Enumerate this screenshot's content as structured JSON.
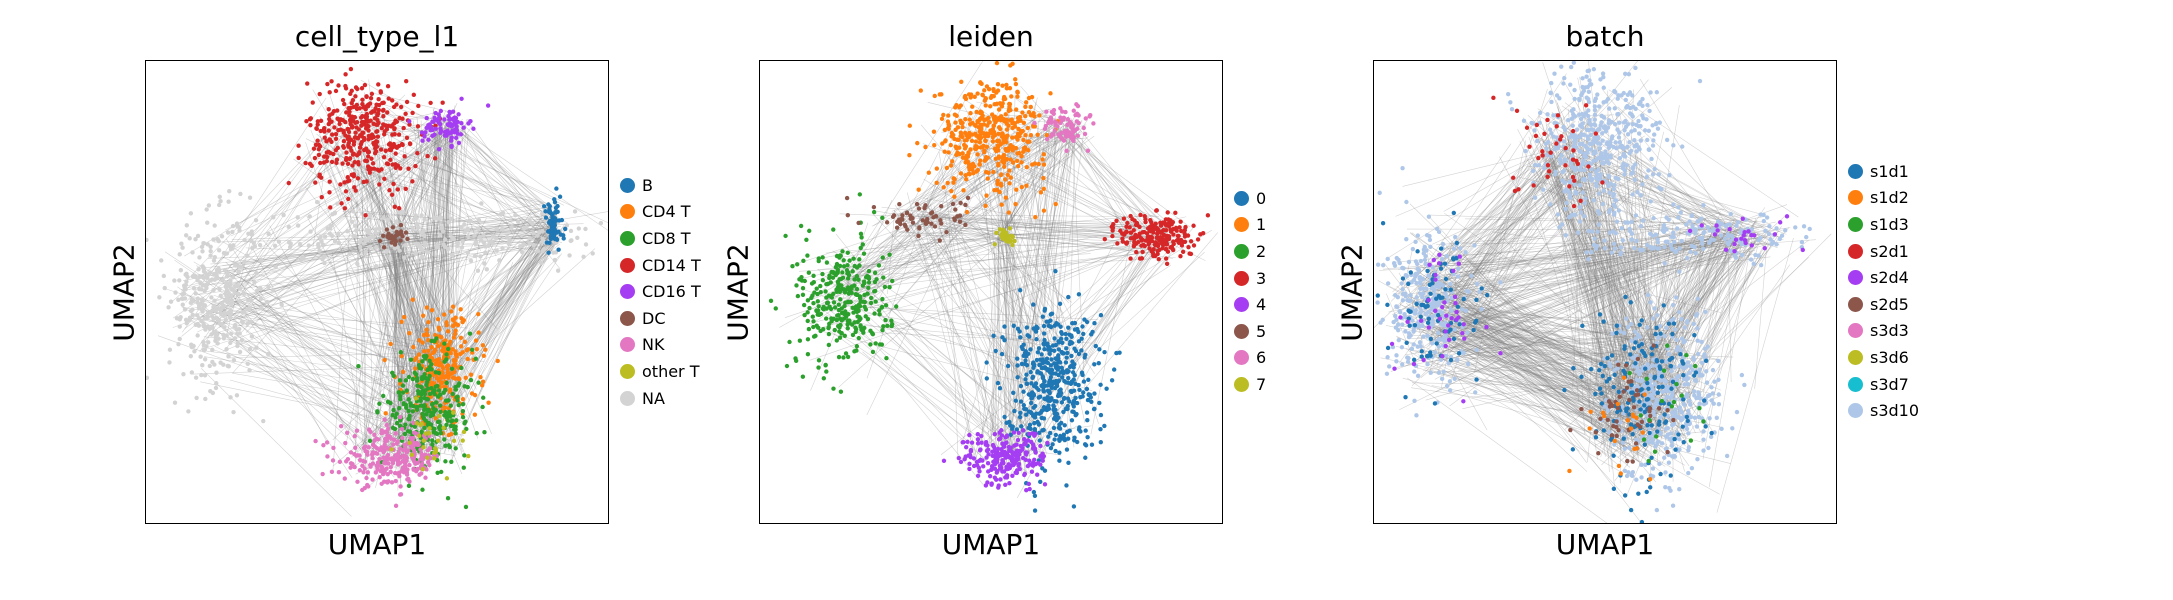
{
  "figure": {
    "background": "#ffffff",
    "edge_color": "#808080"
  },
  "chart_data": [
    {
      "type": "scatter",
      "title": "cell_type_l1",
      "xlabel": "UMAP1",
      "ylabel": "UMAP2",
      "legend_position": "right",
      "legend": [
        {
          "label": "B",
          "color": "#1f77b4"
        },
        {
          "label": "CD4 T",
          "color": "#ff7f0e"
        },
        {
          "label": "CD8 T",
          "color": "#2ca02c"
        },
        {
          "label": "CD14 T",
          "color": "#d62728"
        },
        {
          "label": "CD16 T",
          "color": "#a53ef2"
        },
        {
          "label": "DC",
          "color": "#8c564b"
        },
        {
          "label": "NK",
          "color": "#e377c2"
        },
        {
          "label": "other T",
          "color": "#bcbd22"
        },
        {
          "label": "NA",
          "color": "#d3d3d3"
        }
      ],
      "clusters": [
        {
          "label": "NA",
          "x": 0.15,
          "y": 0.48,
          "sx": 0.05,
          "sy": 0.09,
          "n": 340
        },
        {
          "label": "NA",
          "x": 0.6,
          "y": 0.62,
          "sx": 0.2,
          "sy": 0.03,
          "n": 260
        },
        {
          "label": "CD14 T",
          "x": 0.47,
          "y": 0.84,
          "sx": 0.06,
          "sy": 0.06,
          "n": 380
        },
        {
          "label": "CD16 T",
          "x": 0.65,
          "y": 0.86,
          "sx": 0.025,
          "sy": 0.02,
          "n": 90
        },
        {
          "label": "B",
          "x": 0.88,
          "y": 0.64,
          "sx": 0.012,
          "sy": 0.03,
          "n": 70
        },
        {
          "label": "CD4 T",
          "x": 0.64,
          "y": 0.34,
          "sx": 0.04,
          "sy": 0.06,
          "n": 260
        },
        {
          "label": "CD8 T",
          "x": 0.61,
          "y": 0.24,
          "sx": 0.05,
          "sy": 0.06,
          "n": 280
        },
        {
          "label": "NK",
          "x": 0.53,
          "y": 0.14,
          "sx": 0.055,
          "sy": 0.03,
          "n": 260
        },
        {
          "label": "DC",
          "x": 0.54,
          "y": 0.62,
          "sx": 0.01,
          "sy": 0.01,
          "n": 30
        },
        {
          "label": "other T",
          "x": 0.62,
          "y": 0.18,
          "sx": 0.04,
          "sy": 0.03,
          "n": 30
        }
      ]
    },
    {
      "type": "scatter",
      "title": "leiden",
      "xlabel": "UMAP1",
      "ylabel": "UMAP2",
      "legend_position": "right",
      "legend": [
        {
          "label": "0",
          "color": "#1f77b4"
        },
        {
          "label": "1",
          "color": "#ff7f0e"
        },
        {
          "label": "2",
          "color": "#2ca02c"
        },
        {
          "label": "3",
          "color": "#d62728"
        },
        {
          "label": "4",
          "color": "#a53ef2"
        },
        {
          "label": "5",
          "color": "#8c564b"
        },
        {
          "label": "6",
          "color": "#e377c2"
        },
        {
          "label": "7",
          "color": "#bcbd22"
        }
      ],
      "clusters": [
        {
          "label": "1",
          "x": 0.5,
          "y": 0.84,
          "sx": 0.06,
          "sy": 0.06,
          "n": 420
        },
        {
          "label": "6",
          "x": 0.66,
          "y": 0.86,
          "sx": 0.025,
          "sy": 0.02,
          "n": 80
        },
        {
          "label": "2",
          "x": 0.18,
          "y": 0.48,
          "sx": 0.05,
          "sy": 0.07,
          "n": 320
        },
        {
          "label": "5",
          "x": 0.35,
          "y": 0.66,
          "sx": 0.05,
          "sy": 0.02,
          "n": 60
        },
        {
          "label": "3",
          "x": 0.86,
          "y": 0.62,
          "sx": 0.04,
          "sy": 0.025,
          "n": 220
        },
        {
          "label": "7",
          "x": 0.53,
          "y": 0.62,
          "sx": 0.012,
          "sy": 0.01,
          "n": 30
        },
        {
          "label": "0",
          "x": 0.63,
          "y": 0.31,
          "sx": 0.05,
          "sy": 0.08,
          "n": 460
        },
        {
          "label": "4",
          "x": 0.53,
          "y": 0.14,
          "sx": 0.045,
          "sy": 0.03,
          "n": 220
        }
      ]
    },
    {
      "type": "scatter",
      "title": "batch",
      "xlabel": "UMAP1",
      "ylabel": "UMAP2",
      "legend_position": "right",
      "legend": [
        {
          "label": "s1d1",
          "color": "#1f77b4"
        },
        {
          "label": "s1d2",
          "color": "#ff7f0e"
        },
        {
          "label": "s1d3",
          "color": "#2ca02c"
        },
        {
          "label": "s2d1",
          "color": "#d62728"
        },
        {
          "label": "s2d4",
          "color": "#a53ef2"
        },
        {
          "label": "s2d5",
          "color": "#8c564b"
        },
        {
          "label": "s3d3",
          "color": "#e377c2"
        },
        {
          "label": "s3d6",
          "color": "#bcbd22"
        },
        {
          "label": "s3d7",
          "color": "#17becf"
        },
        {
          "label": "s3d10",
          "color": "#aec7e8"
        }
      ],
      "clusters": [
        {
          "label": "s3d10",
          "x": 0.48,
          "y": 0.82,
          "sx": 0.07,
          "sy": 0.08,
          "n": 460
        },
        {
          "label": "s3d10",
          "x": 0.12,
          "y": 0.46,
          "sx": 0.05,
          "sy": 0.08,
          "n": 300
        },
        {
          "label": "s3d10",
          "x": 0.7,
          "y": 0.62,
          "sx": 0.12,
          "sy": 0.025,
          "n": 180
        },
        {
          "label": "s3d10",
          "x": 0.63,
          "y": 0.28,
          "sx": 0.06,
          "sy": 0.09,
          "n": 420
        },
        {
          "label": "s1d1",
          "x": 0.58,
          "y": 0.28,
          "sx": 0.06,
          "sy": 0.09,
          "n": 160
        },
        {
          "label": "s1d1",
          "x": 0.14,
          "y": 0.46,
          "sx": 0.05,
          "sy": 0.08,
          "n": 80
        },
        {
          "label": "s2d5",
          "x": 0.55,
          "y": 0.24,
          "sx": 0.04,
          "sy": 0.06,
          "n": 50
        },
        {
          "label": "s2d1",
          "x": 0.4,
          "y": 0.8,
          "sx": 0.05,
          "sy": 0.06,
          "n": 40
        },
        {
          "label": "s2d4",
          "x": 0.15,
          "y": 0.45,
          "sx": 0.05,
          "sy": 0.08,
          "n": 40
        },
        {
          "label": "s2d4",
          "x": 0.8,
          "y": 0.62,
          "sx": 0.05,
          "sy": 0.02,
          "n": 25
        },
        {
          "label": "s1d2",
          "x": 0.55,
          "y": 0.2,
          "sx": 0.05,
          "sy": 0.05,
          "n": 20
        },
        {
          "label": "s1d3",
          "x": 0.62,
          "y": 0.3,
          "sx": 0.05,
          "sy": 0.07,
          "n": 20
        }
      ]
    }
  ]
}
